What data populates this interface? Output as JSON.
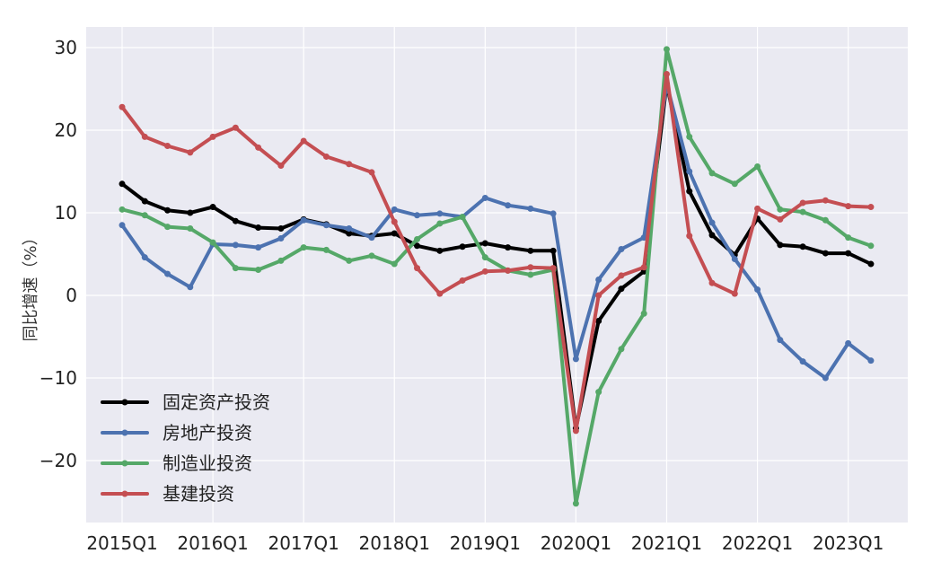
{
  "chart_data": {
    "type": "line",
    "title": "",
    "xlabel": "",
    "ylabel": "同比增速（%）",
    "x": [
      "2015Q1",
      "2015Q2",
      "2015Q3",
      "2015Q4",
      "2016Q1",
      "2016Q2",
      "2016Q3",
      "2016Q4",
      "2017Q1",
      "2017Q2",
      "2017Q3",
      "2017Q4",
      "2018Q1",
      "2018Q2",
      "2018Q3",
      "2018Q4",
      "2019Q1",
      "2019Q2",
      "2019Q3",
      "2019Q4",
      "2020Q1",
      "2020Q2",
      "2020Q3",
      "2020Q4",
      "2021Q1",
      "2021Q2",
      "2021Q3",
      "2021Q4",
      "2022Q1",
      "2022Q2",
      "2022Q3",
      "2022Q4",
      "2023Q1",
      "2023Q2"
    ],
    "xticks": [
      "2015Q1",
      "2016Q1",
      "2017Q1",
      "2018Q1",
      "2019Q1",
      "2020Q1",
      "2021Q1",
      "2022Q1",
      "2023Q1"
    ],
    "yticks": [
      30,
      20,
      10,
      0,
      -10,
      -20
    ],
    "ylim": [
      -27.5,
      32.5
    ],
    "grid": true,
    "legend_position": "bottom-left",
    "series": [
      {
        "name": "固定资产投资",
        "color": "#000000",
        "values": [
          13.5,
          11.4,
          10.3,
          10.0,
          10.7,
          9.0,
          8.2,
          8.1,
          9.2,
          8.6,
          7.5,
          7.2,
          7.5,
          6.0,
          5.4,
          5.9,
          6.3,
          5.8,
          5.4,
          5.4,
          -16.1,
          -3.1,
          0.8,
          2.9,
          25.6,
          12.6,
          7.3,
          4.9,
          9.3,
          6.1,
          5.9,
          5.1,
          5.1,
          3.8
        ]
      },
      {
        "name": "房地产投资",
        "color": "#4c72b0",
        "values": [
          8.5,
          4.6,
          2.6,
          1.0,
          6.2,
          6.1,
          5.8,
          6.9,
          9.1,
          8.5,
          8.1,
          7.0,
          10.4,
          9.7,
          9.9,
          9.5,
          11.8,
          10.9,
          10.5,
          9.9,
          -7.7,
          1.9,
          5.6,
          7.0,
          25.6,
          15.0,
          8.8,
          4.4,
          0.7,
          -5.4,
          -8.0,
          -10.0,
          -5.8,
          -7.9
        ]
      },
      {
        "name": "制造业投资",
        "color": "#55a868",
        "values": [
          10.4,
          9.7,
          8.3,
          8.1,
          6.4,
          3.3,
          3.1,
          4.2,
          5.8,
          5.5,
          4.2,
          4.8,
          3.8,
          6.8,
          8.7,
          9.5,
          4.6,
          3.0,
          2.5,
          3.1,
          -25.2,
          -11.7,
          -6.5,
          -2.2,
          29.8,
          19.2,
          14.8,
          13.5,
          15.6,
          10.4,
          10.1,
          9.1,
          7.0,
          6.0
        ]
      },
      {
        "name": "基建投资",
        "color": "#c44e52",
        "values": [
          22.8,
          19.2,
          18.1,
          17.3,
          19.2,
          20.3,
          17.9,
          15.7,
          18.7,
          16.8,
          15.9,
          14.9,
          8.9,
          3.3,
          0.2,
          1.8,
          2.9,
          3.0,
          3.4,
          3.3,
          -16.4,
          0.0,
          2.4,
          3.4,
          26.8,
          7.2,
          1.5,
          0.2,
          10.5,
          9.2,
          11.2,
          11.5,
          10.8,
          10.7
        ]
      }
    ]
  }
}
